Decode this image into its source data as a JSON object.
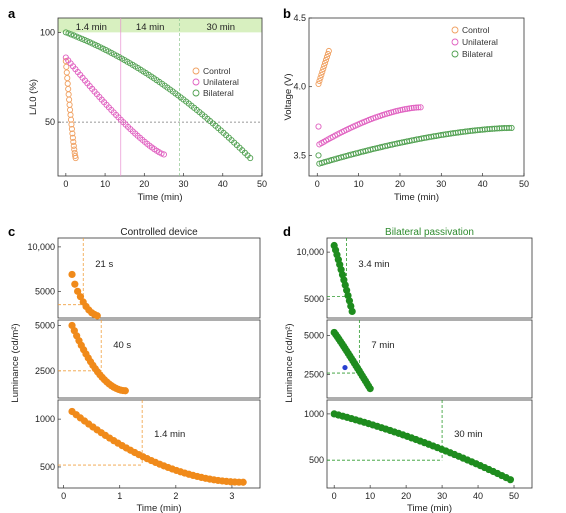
{
  "colors": {
    "control": "#f0a060",
    "unilateral": "#e060c0",
    "bilateral": "#50a050",
    "orange_fill": "#f08a1a",
    "green_fill": "#1e8c1e",
    "blue_point": "#2840d0",
    "band": "#d8f0c0"
  },
  "chart_data": [
    {
      "panel": "a",
      "type": "scatter",
      "xlabel": "Time (min)",
      "ylabel": "L/L0 (%)",
      "xlim": [
        -2,
        50
      ],
      "ylim": [
        20,
        108
      ],
      "xticks": [
        0,
        10,
        20,
        30,
        40,
        50
      ],
      "yticks": [
        50,
        100
      ],
      "bands": [
        {
          "label": "1.4 min",
          "x0": -2,
          "x1": 14
        },
        {
          "label": "14 min",
          "x0": 14,
          "x1": 29
        },
        {
          "label": "30 min",
          "x0": 29,
          "x1": 50
        }
      ],
      "vlines": [
        14,
        29
      ],
      "hline": 50,
      "legend": [
        "Control",
        "Unilateral",
        "Bilateral"
      ],
      "legend_position": "right",
      "series": [
        {
          "name": "Control",
          "t_max": 2.5,
          "end": 30,
          "decay": "fast"
        },
        {
          "name": "Unilateral",
          "t_max": 25,
          "end": 32,
          "decay": "mid"
        },
        {
          "name": "Bilateral",
          "t_max": 47,
          "end": 30,
          "decay": "slow"
        }
      ]
    },
    {
      "panel": "b",
      "type": "scatter",
      "xlabel": "Time (min)",
      "ylabel": "Voltage (V)",
      "xlim": [
        -2,
        50
      ],
      "ylim": [
        3.35,
        4.5
      ],
      "xticks": [
        0,
        10,
        20,
        30,
        40,
        50
      ],
      "yticks": [
        "3.5",
        "4.0",
        "4.5"
      ],
      "legend": [
        "Control",
        "Unilateral",
        "Bilateral"
      ],
      "legend_position": "top-right",
      "series": [
        {
          "name": "Control",
          "t_start": 0.3,
          "t_end": 2.8,
          "v_start": 4.02,
          "v_end": 4.26
        },
        {
          "name": "Unilateral",
          "t_start": 0.5,
          "t_end": 25,
          "v_start": 3.58,
          "v_end": 3.85
        },
        {
          "name": "Bilateral",
          "t_start": 0.5,
          "t_end": 47,
          "v_start": 3.44,
          "v_end": 3.7
        }
      ]
    },
    {
      "panel": "c",
      "type": "scatter",
      "title": "Controlled device",
      "xlabel": "Time (min)",
      "ylabel": "Luminance (cd/m²)",
      "xlim": [
        -0.1,
        3.5
      ],
      "xticks": [
        "0",
        "1",
        "2",
        "3"
      ],
      "subplots": [
        {
          "ylim": [
            2000,
            11000
          ],
          "yticks": [
            "5000",
            "10,000"
          ],
          "annot": "21 s",
          "vline": 0.35,
          "hline": 3500,
          "points": [
            [
              0.15,
              6900
            ],
            [
              0.2,
              5800
            ],
            [
              0.25,
              5000
            ],
            [
              0.3,
              4400
            ],
            [
              0.35,
              3800
            ],
            [
              0.4,
              3300
            ],
            [
              0.45,
              2900
            ],
            [
              0.5,
              2600
            ],
            [
              0.55,
              2400
            ],
            [
              0.6,
              2250
            ]
          ]
        },
        {
          "ylim": [
            1000,
            5300
          ],
          "yticks": [
            "2500",
            "5000"
          ],
          "annot": "40 s",
          "vline": 0.67,
          "hline": 2500,
          "x0": 0.15,
          "x1": 1.1,
          "y0": 5000,
          "y1": 1400
        },
        {
          "ylim": [
            280,
            1200
          ],
          "yticks": [
            "500",
            "1000"
          ],
          "annot": "1.4 min",
          "vline": 1.4,
          "hline": 520,
          "x0": 0.15,
          "x1": 3.2,
          "y0": 1080,
          "y1": 340
        }
      ]
    },
    {
      "panel": "d",
      "type": "scatter",
      "title": "Bilateral passivation",
      "xlabel": "Time (min)",
      "ylabel": "Luminance (cd/m²)",
      "xlim": [
        -2,
        55
      ],
      "xticks": [
        "0",
        "10",
        "20",
        "30",
        "40",
        "50"
      ],
      "subplots": [
        {
          "ylim": [
            3000,
            11500
          ],
          "yticks": [
            "5000",
            "10,000"
          ],
          "annot": "3.4 min",
          "vline": 3.4,
          "hline": 5300,
          "x0": 0,
          "x1": 5,
          "y0": 10700,
          "y1": 3700
        },
        {
          "ylim": [
            1000,
            6000
          ],
          "yticks": [
            "2500",
            "5000"
          ],
          "annot": "7 min",
          "vline": 7,
          "hline": 2600,
          "x0": 0,
          "x1": 10,
          "y0": 5200,
          "y1": 1600,
          "extra_point": [
            3,
            2950
          ]
        },
        {
          "ylim": [
            200,
            1150
          ],
          "yticks": [
            "500",
            "1000"
          ],
          "annot": "30 min",
          "vline": 30,
          "hline": 500,
          "x0": 0,
          "x1": 49,
          "y0": 1000,
          "y1": 290
        }
      ]
    }
  ],
  "labels": {
    "a": "a",
    "b": "b",
    "c": "c",
    "d": "d"
  }
}
